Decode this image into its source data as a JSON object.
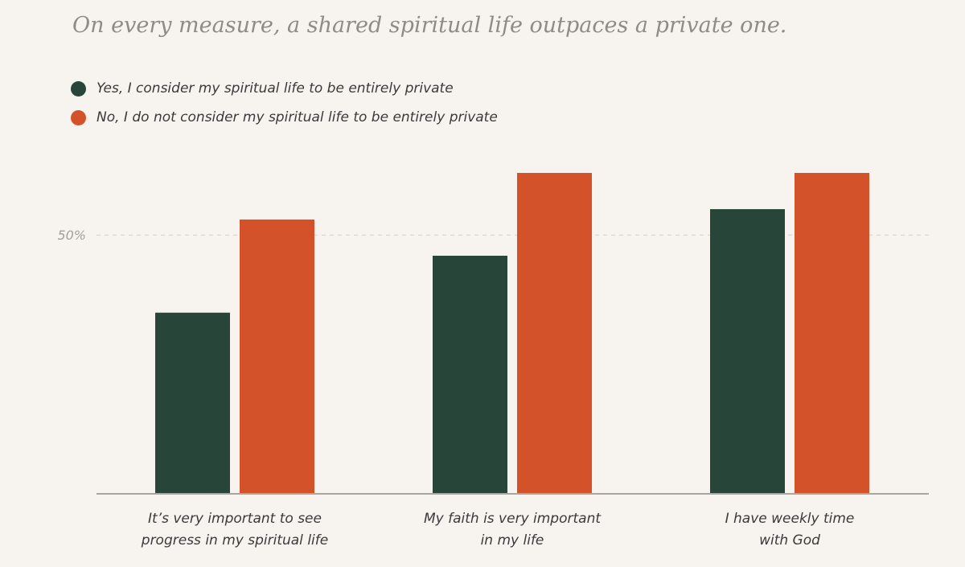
{
  "title": "On every measure, a shared spiritual life outpaces a private one.",
  "legend": [
    {
      "label": "Yes, I consider my spiritual life to be entirely private",
      "color": "#28453a"
    },
    {
      "label": "No, I do not consider my spiritual life to be entirely private",
      "color": "#d4522a"
    }
  ],
  "chart_data": {
    "type": "bar",
    "title": "On every measure, a shared spiritual life outpaces a private one.",
    "categories": [
      [
        "It’s very important to see",
        "progress in my spiritual life"
      ],
      [
        "My faith is very important",
        "in my life"
      ],
      [
        "I have weekly time",
        "with God"
      ]
    ],
    "series": [
      {
        "name": "Yes, I consider my spiritual life to be entirely private",
        "color": "#28453a",
        "values": [
          35,
          46,
          55
        ]
      },
      {
        "name": "No, I do not consider my spiritual life to be entirely private",
        "color": "#d4522a",
        "values": [
          53,
          62,
          62
        ]
      }
    ],
    "yticks": [
      {
        "value": 50,
        "label": "50%"
      }
    ],
    "ylim": [
      0,
      62
    ],
    "xlabel": "",
    "ylabel": "",
    "grid": true,
    "legend_position": "top-left"
  }
}
